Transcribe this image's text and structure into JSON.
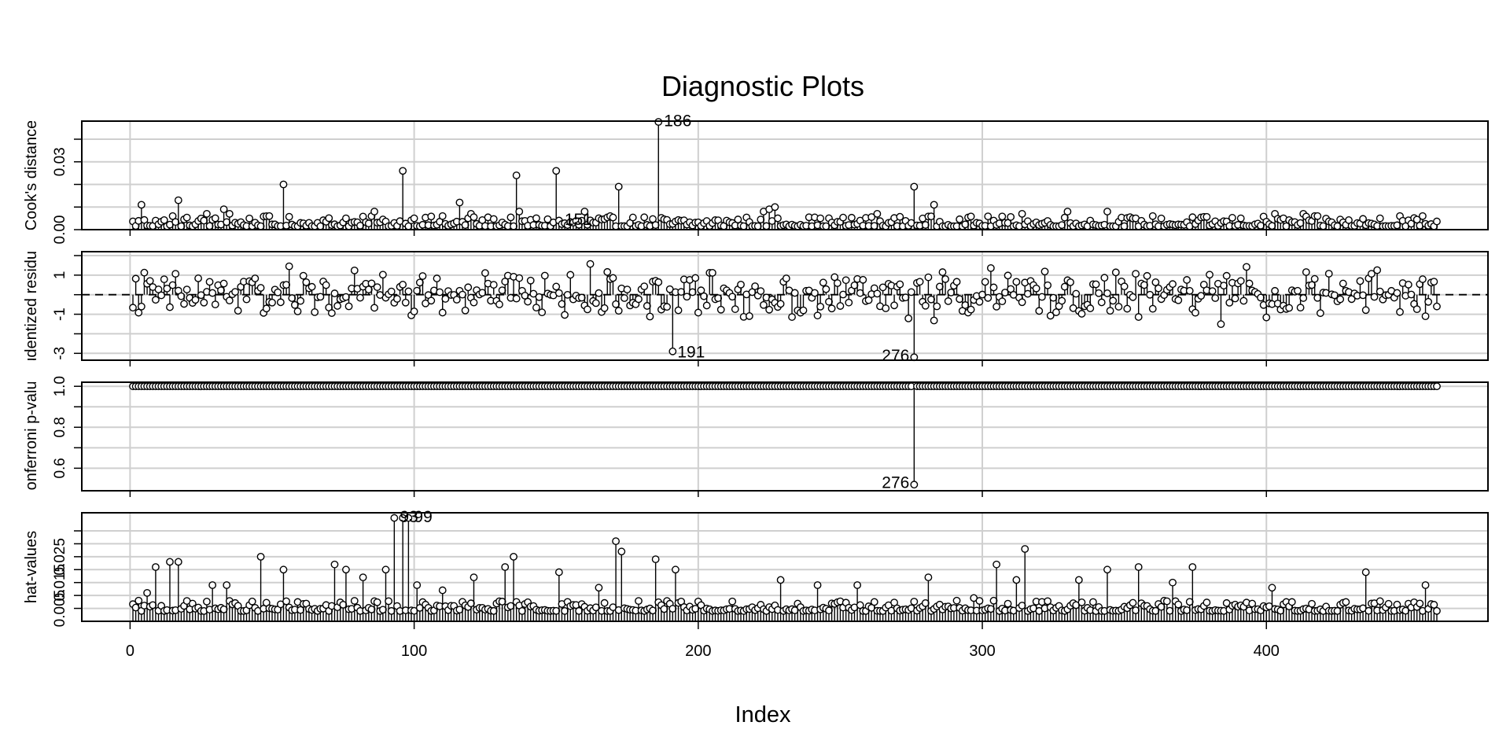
{
  "title": "Diagnostic Plots",
  "xlabel": "Index",
  "colors": {
    "grid": "#cfcfcf",
    "line": "#000000",
    "background": "#ffffff"
  },
  "chart_data": {
    "type": "scatter",
    "style": "index plot with vertical lines (type h) and open circles",
    "grid": true,
    "n": 460,
    "x": {
      "label": "Index",
      "ticks": [
        0,
        100,
        200,
        300,
        400
      ],
      "tick_labels": [
        "0",
        "100",
        "200",
        "300",
        "400"
      ],
      "range": [
        -17,
        478
      ]
    },
    "panels": [
      {
        "id": "cooks",
        "ylabel": "Cook's distance",
        "ylim": [
          0,
          0.048
        ],
        "ticks": [
          0.0,
          0.03
        ],
        "tick_labels": [
          "0.00",
          "0.03"
        ],
        "minor_ticks": [
          0.01,
          0.02,
          0.04
        ],
        "baseline": 0,
        "base_level": 0.0015,
        "spread": 0.0045,
        "spikes": [
          [
            4,
            0.011
          ],
          [
            9,
            0.004
          ],
          [
            15,
            0.006
          ],
          [
            17,
            0.013
          ],
          [
            27,
            0.007
          ],
          [
            26,
            0.004
          ],
          [
            33,
            0.009
          ],
          [
            35,
            0.007
          ],
          [
            49,
            0.006
          ],
          [
            54,
            0.02
          ],
          [
            66,
            0.003
          ],
          [
            76,
            0.005
          ],
          [
            86,
            0.008
          ],
          [
            96,
            0.026
          ],
          [
            100,
            0.005
          ],
          [
            110,
            0.006
          ],
          [
            116,
            0.012
          ],
          [
            120,
            0.007
          ],
          [
            136,
            0.024
          ],
          [
            137,
            0.008
          ],
          [
            150,
            0.026
          ],
          [
            160,
            0.008
          ],
          [
            172,
            0.019
          ],
          [
            186,
            0.05
          ],
          [
            210,
            0.004
          ],
          [
            223,
            0.008
          ],
          [
            225,
            0.009
          ],
          [
            227,
            0.01
          ],
          [
            243,
            0.005
          ],
          [
            257,
            0.004
          ],
          [
            263,
            0.007
          ],
          [
            276,
            0.019
          ],
          [
            283,
            0.011
          ],
          [
            304,
            0.004
          ],
          [
            314,
            0.007
          ],
          [
            330,
            0.008
          ],
          [
            344,
            0.008
          ],
          [
            360,
            0.006
          ],
          [
            403,
            0.007
          ],
          [
            413,
            0.007
          ],
          [
            440,
            0.005
          ],
          [
            447,
            0.006
          ],
          [
            455,
            0.006
          ]
        ],
        "labels": [
          {
            "index": 186,
            "text": "186"
          },
          {
            "index": 151,
            "text": "151"
          }
        ]
      },
      {
        "id": "rstudent",
        "ylabel": "Studentized residuals",
        "ylim": [
          -3.35,
          2.2
        ],
        "ticks": [
          -3,
          -1,
          1
        ],
        "tick_labels": [
          "-3",
          "-1",
          "1"
        ],
        "minor_ticks": [
          -2,
          0,
          2
        ],
        "baseline": 0,
        "reference_line": 0,
        "spikes": [
          [
            191,
            -2.9
          ],
          [
            276,
            -3.2
          ]
        ],
        "labels": [
          {
            "index": 191,
            "text": "191"
          },
          {
            "index": 276,
            "text": "276"
          }
        ]
      },
      {
        "id": "bonferroni",
        "ylabel": "Bonferroni p-value",
        "ylim": [
          0.49,
          1.02
        ],
        "ticks": [
          0.6,
          0.8,
          1.0
        ],
        "tick_labels": [
          "0.6",
          "0.8",
          "1.0"
        ],
        "minor_ticks": [
          0.7,
          0.9
        ],
        "baseline": 1.0,
        "spikes": [
          [
            276,
            0.52
          ]
        ],
        "labels": [
          {
            "index": 276,
            "text": "276"
          }
        ]
      },
      {
        "id": "hat",
        "ylabel": "hat-values",
        "ylim": [
          0.0,
          0.042
        ],
        "ticks": [
          0.005,
          0.015,
          0.025
        ],
        "tick_labels": [
          "0.005",
          "0.015",
          "0.025"
        ],
        "minor_ticks": [
          0.01,
          0.02,
          0.03,
          0.035
        ],
        "baseline": 0.0,
        "base_level": 0.004,
        "spread": 0.004,
        "spikes": [
          [
            6,
            0.011
          ],
          [
            9,
            0.021
          ],
          [
            14,
            0.023
          ],
          [
            17,
            0.023
          ],
          [
            29,
            0.014
          ],
          [
            34,
            0.014
          ],
          [
            46,
            0.025
          ],
          [
            54,
            0.02
          ],
          [
            72,
            0.022
          ],
          [
            76,
            0.02
          ],
          [
            82,
            0.017
          ],
          [
            90,
            0.02
          ],
          [
            93,
            0.04
          ],
          [
            96,
            0.04
          ],
          [
            98,
            0.04
          ],
          [
            101,
            0.014
          ],
          [
            110,
            0.012
          ],
          [
            121,
            0.017
          ],
          [
            132,
            0.021
          ],
          [
            135,
            0.025
          ],
          [
            151,
            0.019
          ],
          [
            165,
            0.013
          ],
          [
            171,
            0.031
          ],
          [
            173,
            0.027
          ],
          [
            185,
            0.024
          ],
          [
            192,
            0.02
          ],
          [
            229,
            0.016
          ],
          [
            242,
            0.014
          ],
          [
            256,
            0.014
          ],
          [
            281,
            0.017
          ],
          [
            297,
            0.009
          ],
          [
            305,
            0.022
          ],
          [
            312,
            0.016
          ],
          [
            315,
            0.028
          ],
          [
            334,
            0.016
          ],
          [
            344,
            0.02
          ],
          [
            355,
            0.021
          ],
          [
            367,
            0.015
          ],
          [
            374,
            0.021
          ],
          [
            402,
            0.013
          ],
          [
            435,
            0.019
          ],
          [
            456,
            0.014
          ]
        ],
        "labels": [
          {
            "index": 93,
            "text": "93"
          },
          {
            "index": 98,
            "text": "99"
          }
        ]
      }
    ]
  }
}
